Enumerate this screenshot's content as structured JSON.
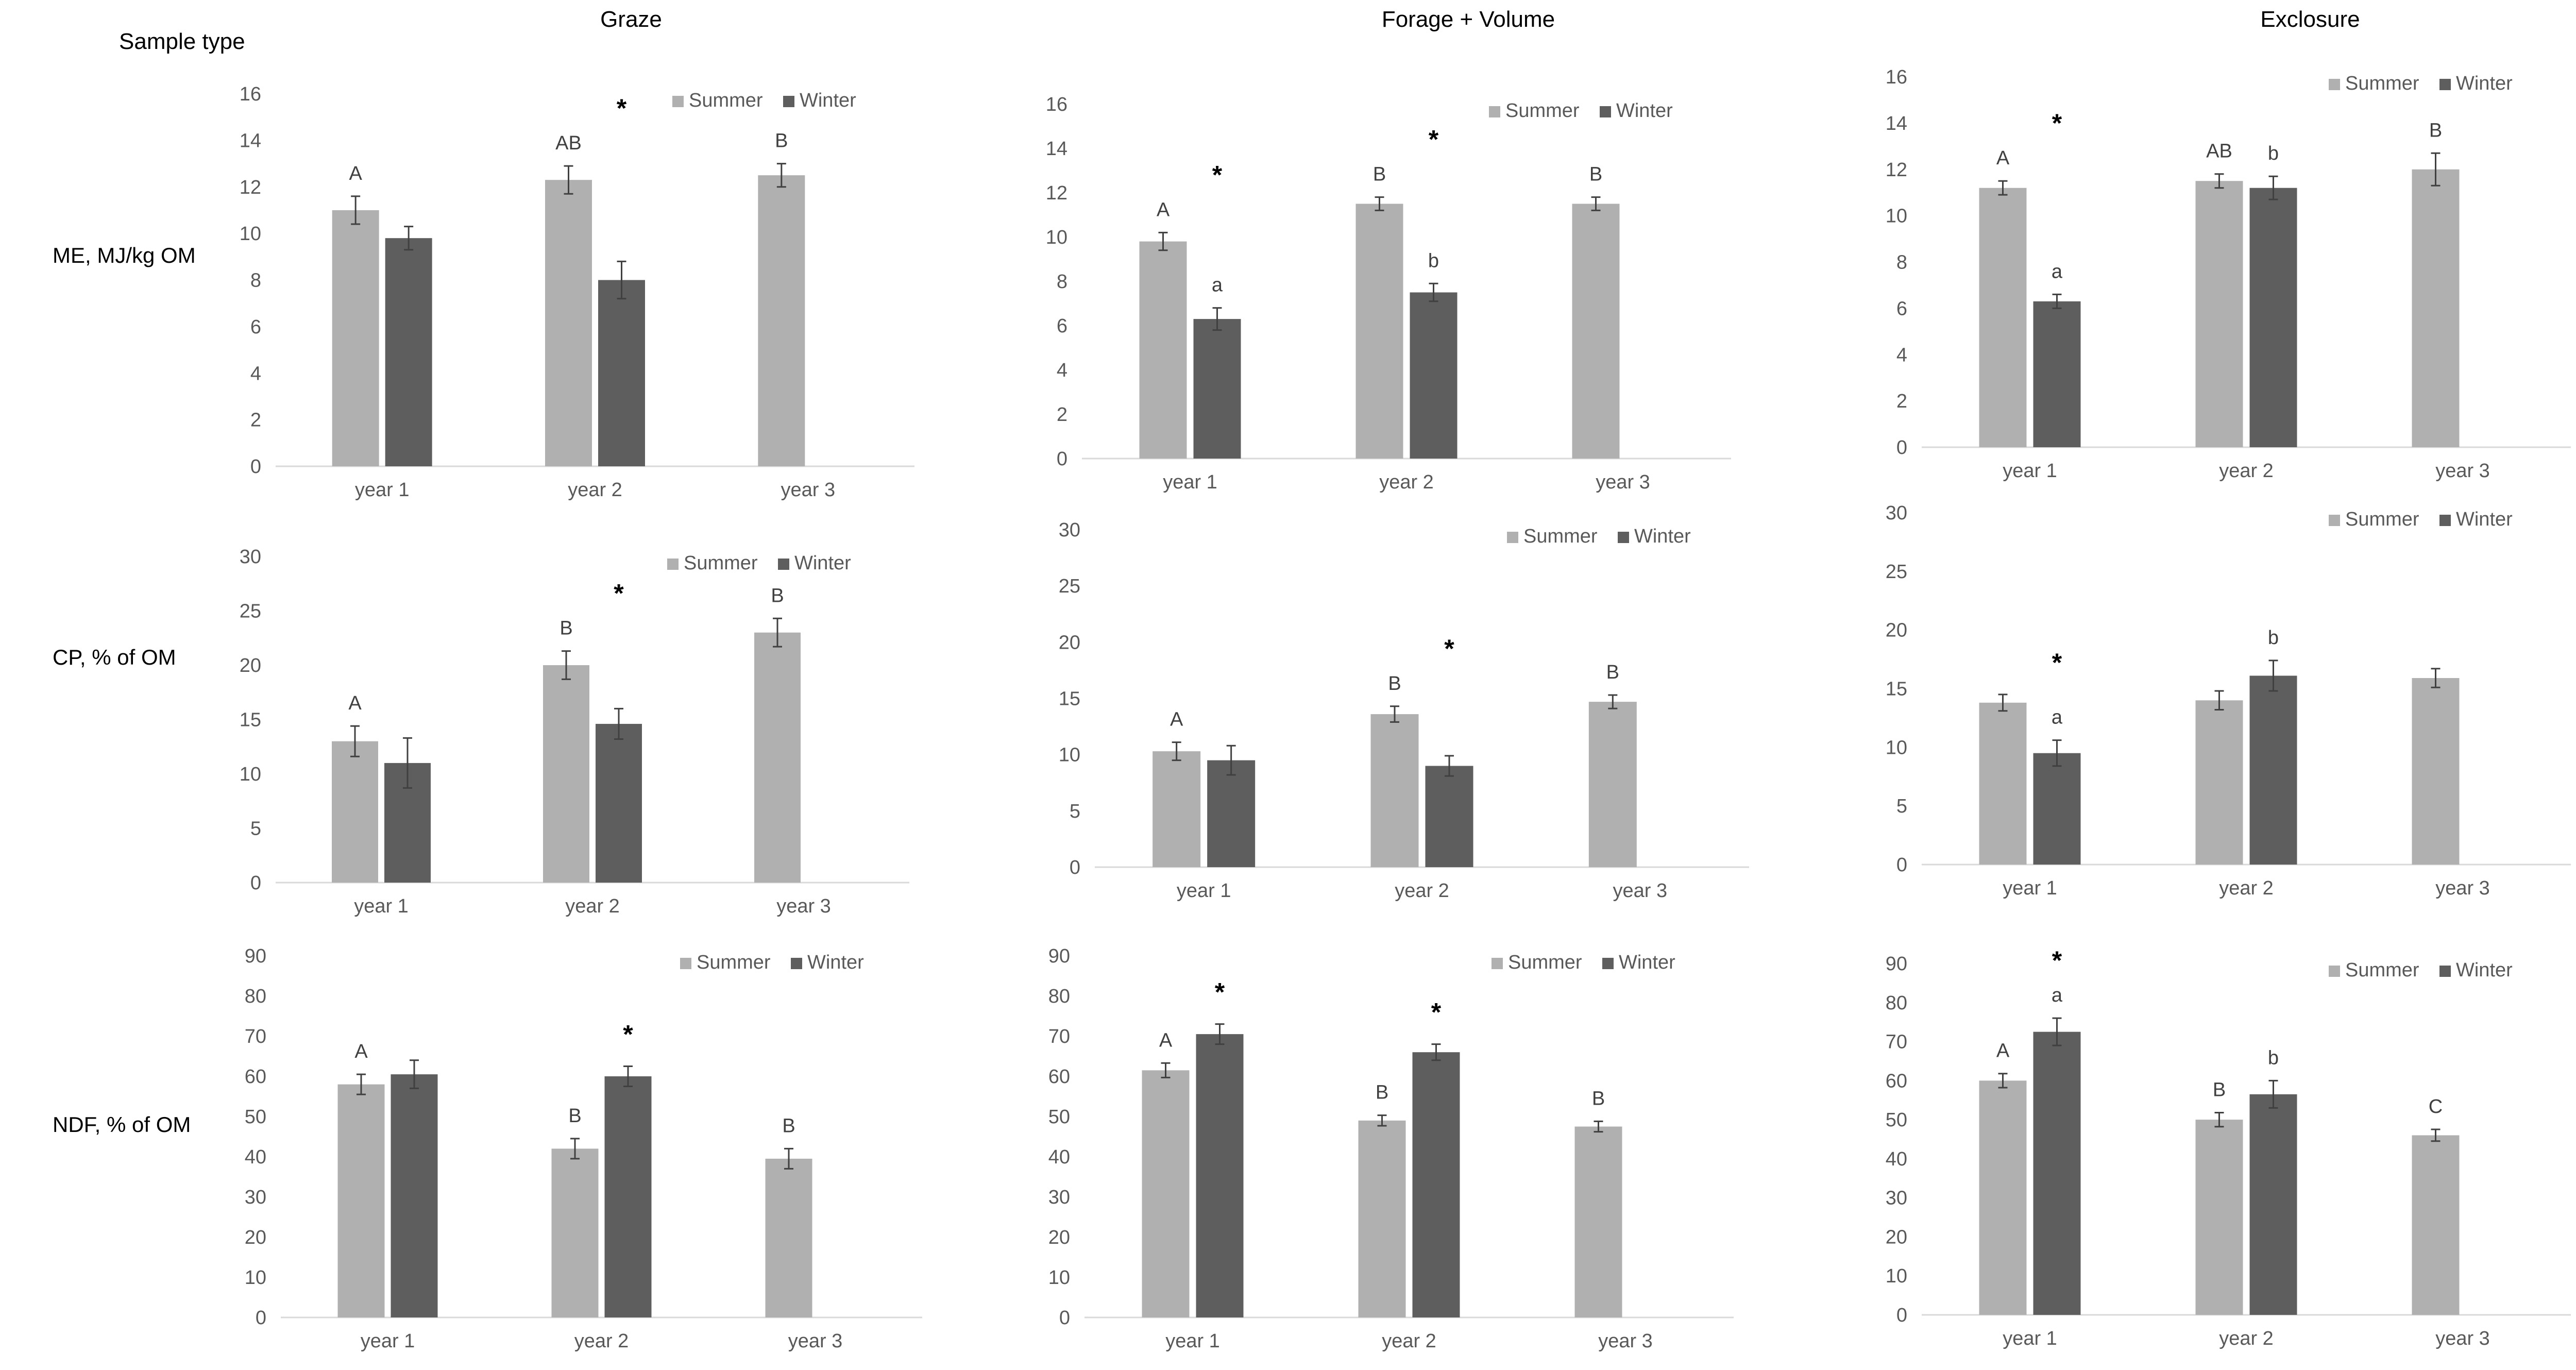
{
  "figure": {
    "row_header": "Sample type",
    "col_titles": [
      "Graze",
      "Forage + Volume",
      "Exclosure"
    ],
    "row_labels": [
      "ME, MJ/kg OM",
      "CP, % of OM",
      "NDF, % of OM"
    ]
  },
  "colors": {
    "summer": "#b0b0b0",
    "winter": "#5e5e5e",
    "axis": "#d9d9d9",
    "text": "#595959",
    "ink": "#000000"
  },
  "chart_data": [
    {
      "type": "bar",
      "panel": "Graze / ME, MJ/kg OM",
      "row": 0,
      "col": 0,
      "categories": [
        "year 1",
        "year 2",
        "year 3"
      ],
      "ylim": [
        0,
        16
      ],
      "ytick_step": 2,
      "yticks": [
        "0",
        "2",
        "4",
        "6",
        "8",
        "10",
        "12",
        "14",
        "16"
      ],
      "legend": "top-right",
      "series": [
        {
          "name": "Summer",
          "values": [
            11.0,
            12.3,
            12.5
          ],
          "errors": [
            0.6,
            0.6,
            0.5
          ],
          "letters": [
            "A",
            "AB",
            "B"
          ]
        },
        {
          "name": "Winter",
          "values": [
            9.8,
            8.0,
            null
          ],
          "errors": [
            0.5,
            0.8,
            null
          ],
          "letters": [
            "",
            "",
            ""
          ]
        }
      ],
      "stars": [
        "",
        "*",
        ""
      ]
    },
    {
      "type": "bar",
      "panel": "Forage + Volume / ME, MJ/kg OM",
      "row": 0,
      "col": 1,
      "categories": [
        "year 1",
        "year 2",
        "year 3"
      ],
      "ylim": [
        0,
        16
      ],
      "ytick_step": 2,
      "yticks": [
        "0",
        "2",
        "4",
        "6",
        "8",
        "10",
        "12",
        "14",
        "16"
      ],
      "legend": "top-right",
      "series": [
        {
          "name": "Summer",
          "values": [
            9.8,
            11.5,
            11.5
          ],
          "errors": [
            0.4,
            0.3,
            0.3
          ],
          "letters": [
            "A",
            "B",
            "B"
          ]
        },
        {
          "name": "Winter",
          "values": [
            6.3,
            7.5,
            null
          ],
          "errors": [
            0.5,
            0.4,
            null
          ],
          "letters": [
            "a",
            "b",
            ""
          ]
        }
      ],
      "stars": [
        "*",
        "*",
        ""
      ]
    },
    {
      "type": "bar",
      "panel": "Exclosure / ME, MJ/kg OM",
      "row": 0,
      "col": 2,
      "categories": [
        "year 1",
        "year 2",
        "year 3"
      ],
      "ylim": [
        0,
        16
      ],
      "ytick_step": 2,
      "yticks": [
        "0",
        "2",
        "4",
        "6",
        "8",
        "10",
        "12",
        "14",
        "16"
      ],
      "legend": "top-right",
      "series": [
        {
          "name": "Summer",
          "values": [
            11.2,
            11.5,
            12.0
          ],
          "errors": [
            0.3,
            0.3,
            0.7
          ],
          "letters": [
            "A",
            "AB",
            "B"
          ]
        },
        {
          "name": "Winter",
          "values": [
            6.3,
            11.2,
            null
          ],
          "errors": [
            0.3,
            0.5,
            null
          ],
          "letters": [
            "a",
            "b",
            ""
          ]
        }
      ],
      "stars": [
        "*",
        "",
        ""
      ]
    },
    {
      "type": "bar",
      "panel": "Graze / CP, % of OM",
      "row": 1,
      "col": 0,
      "categories": [
        "year 1",
        "year 2",
        "year 3"
      ],
      "ylim": [
        0,
        30
      ],
      "ytick_step": 5,
      "yticks": [
        "0",
        "5",
        "10",
        "15",
        "20",
        "25",
        "30"
      ],
      "legend": "top-right",
      "series": [
        {
          "name": "Summer",
          "values": [
            13.0,
            20.0,
            23.0
          ],
          "errors": [
            1.4,
            1.3,
            1.3
          ],
          "letters": [
            "A",
            "B",
            "B"
          ]
        },
        {
          "name": "Winter",
          "values": [
            11.0,
            14.6,
            null
          ],
          "errors": [
            2.3,
            1.4,
            null
          ],
          "letters": [
            "",
            "",
            ""
          ]
        }
      ],
      "stars": [
        "",
        "*",
        ""
      ]
    },
    {
      "type": "bar",
      "panel": "Forage + Volume / CP, % of OM",
      "row": 1,
      "col": 1,
      "categories": [
        "year 1",
        "year 2",
        "year 3"
      ],
      "ylim": [
        0,
        30
      ],
      "ytick_step": 5,
      "yticks": [
        "0",
        "5",
        "10",
        "15",
        "20",
        "25",
        "30"
      ],
      "legend": "top-right",
      "series": [
        {
          "name": "Summer",
          "values": [
            10.3,
            13.6,
            14.7
          ],
          "errors": [
            0.8,
            0.7,
            0.6
          ],
          "letters": [
            "A",
            "B",
            "B"
          ]
        },
        {
          "name": "Winter",
          "values": [
            9.5,
            9.0,
            null
          ],
          "errors": [
            1.3,
            0.9,
            null
          ],
          "letters": [
            "",
            "",
            ""
          ]
        }
      ],
      "stars": [
        "",
        "*",
        ""
      ]
    },
    {
      "type": "bar",
      "panel": "Exclosure / CP, % of OM",
      "row": 1,
      "col": 2,
      "categories": [
        "year 1",
        "year 2",
        "year 3"
      ],
      "ylim": [
        0,
        30
      ],
      "ytick_step": 5,
      "yticks": [
        "0",
        "5",
        "10",
        "15",
        "20",
        "25",
        "30"
      ],
      "legend": "top-right",
      "series": [
        {
          "name": "Summer",
          "values": [
            13.8,
            14.0,
            15.9
          ],
          "errors": [
            0.7,
            0.8,
            0.8
          ],
          "letters": [
            "",
            "",
            ""
          ]
        },
        {
          "name": "Winter",
          "values": [
            9.5,
            16.1,
            null
          ],
          "errors": [
            1.1,
            1.3,
            null
          ],
          "letters": [
            "a",
            "b",
            ""
          ]
        }
      ],
      "stars": [
        "*",
        "",
        ""
      ]
    },
    {
      "type": "bar",
      "panel": "Graze / NDF, % of OM",
      "row": 2,
      "col": 0,
      "categories": [
        "year 1",
        "year 2",
        "year 3"
      ],
      "ylim": [
        0,
        90
      ],
      "ytick_step": 10,
      "yticks": [
        "0",
        "10",
        "20",
        "30",
        "40",
        "50",
        "60",
        "70",
        "80",
        "90"
      ],
      "legend": "top-right",
      "series": [
        {
          "name": "Summer",
          "values": [
            58,
            42,
            39.5
          ],
          "errors": [
            2.5,
            2.5,
            2.5
          ],
          "letters": [
            "A",
            "B",
            "B"
          ]
        },
        {
          "name": "Winter",
          "values": [
            60.5,
            60,
            null
          ],
          "errors": [
            3.5,
            2.5,
            null
          ],
          "letters": [
            "",
            "",
            ""
          ]
        }
      ],
      "stars": [
        "",
        "*",
        ""
      ]
    },
    {
      "type": "bar",
      "panel": "Forage + Volume / NDF, % of OM",
      "row": 2,
      "col": 1,
      "categories": [
        "year 1",
        "year 2",
        "year 3"
      ],
      "ylim": [
        0,
        90
      ],
      "ytick_step": 10,
      "yticks": [
        "0",
        "10",
        "20",
        "30",
        "40",
        "50",
        "60",
        "70",
        "80",
        "90"
      ],
      "legend": "top-right",
      "series": [
        {
          "name": "Summer",
          "values": [
            61.5,
            49,
            47.5
          ],
          "errors": [
            1.8,
            1.3,
            1.3
          ],
          "letters": [
            "A",
            "B",
            "B"
          ]
        },
        {
          "name": "Winter",
          "values": [
            70.5,
            66,
            null
          ],
          "errors": [
            2.5,
            2.0,
            null
          ],
          "letters": [
            "",
            "",
            ""
          ]
        }
      ],
      "stars": [
        "*",
        "*",
        ""
      ]
    },
    {
      "type": "bar",
      "panel": "Exclosure / NDF, % of OM",
      "row": 2,
      "col": 2,
      "categories": [
        "year 1",
        "year 2",
        "year 3"
      ],
      "ylim": [
        0,
        90
      ],
      "ytick_step": 10,
      "yticks": [
        "0",
        "10",
        "20",
        "30",
        "40",
        "50",
        "60",
        "70",
        "80",
        "90"
      ],
      "legend": "top-right",
      "series": [
        {
          "name": "Summer",
          "values": [
            60,
            50,
            46
          ],
          "errors": [
            1.8,
            1.8,
            1.5
          ],
          "letters": [
            "A",
            "B",
            "C"
          ]
        },
        {
          "name": "Winter",
          "values": [
            72.5,
            56.5,
            null
          ],
          "errors": [
            3.5,
            3.5,
            null
          ],
          "letters": [
            "a",
            "b",
            ""
          ]
        }
      ],
      "stars": [
        "*",
        "",
        ""
      ]
    }
  ]
}
